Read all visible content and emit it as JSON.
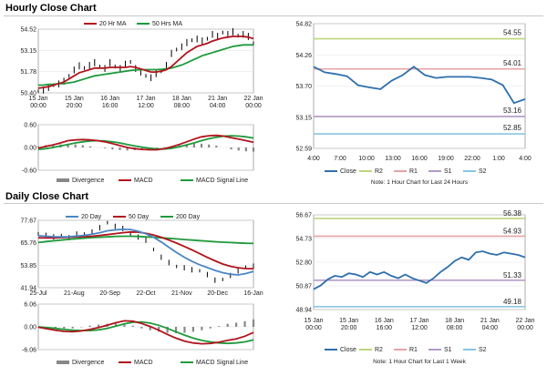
{
  "titles": {
    "hourly": "Hourly Close Chart",
    "daily": "Daily Close Chart"
  },
  "colors": {
    "price": "#000000",
    "ma_short": "#b0141c",
    "ma_long": "#1f9a3c",
    "ma_mid": "#4a86c5",
    "macd": "#b0141c",
    "signal": "#1f9a3c",
    "divergence": "#888888",
    "close": "#2f6fad",
    "r2": "#bcd67a",
    "r1": "#e8a2a2",
    "s1": "#b39ac8",
    "s2": "#88c6e0"
  },
  "chart_data": [
    {
      "id": "hourly_price",
      "type": "line",
      "legend": [
        "20 Hr MA",
        "50 Hrs MA"
      ],
      "x_ticks": [
        "15 Jan\n00:00",
        "15 Jan\n20:00",
        "16 Jan\n16:00",
        "17 Jan\n12:00",
        "18 Jan\n08:00",
        "21 Jan\n04:00",
        "22 Jan\n00:00"
      ],
      "y_ticks": [
        "54.52",
        "53.15",
        "51.78",
        "50.40"
      ],
      "ylim": [
        50.4,
        54.52
      ],
      "series": [
        {
          "name": "Price",
          "values": [
            50.5,
            50.6,
            50.7,
            50.9,
            51.0,
            51.1,
            51.5,
            51.9,
            52.1,
            52.0,
            52.2,
            52.3,
            52.1,
            52.0,
            52.3,
            52.1,
            52.0,
            52.2,
            52.4,
            52.0,
            51.7,
            51.5,
            51.4,
            51.6,
            51.8,
            52.2,
            52.9,
            53.2,
            53.4,
            53.6,
            53.8,
            53.9,
            53.7,
            53.9,
            54.2,
            54.0,
            54.3,
            54.2,
            54.3,
            54.1,
            54.2,
            54.0,
            53.6
          ]
        },
        {
          "name": "20 Hr MA",
          "values": [
            50.7,
            50.75,
            50.8,
            50.9,
            51.0,
            51.1,
            51.3,
            51.5,
            51.7,
            51.8,
            51.9,
            52.0,
            52.0,
            52.0,
            52.05,
            52.05,
            52.05,
            52.05,
            52.1,
            52.05,
            51.95,
            51.85,
            51.75,
            51.75,
            51.8,
            51.9,
            52.1,
            52.4,
            52.7,
            53.0,
            53.2,
            53.4,
            53.5,
            53.6,
            53.75,
            53.85,
            53.95,
            54.0,
            54.05,
            54.05,
            54.05,
            54.0,
            53.9
          ]
        },
        {
          "name": "50 Hrs MA",
          "values": [
            50.9,
            50.9,
            50.95,
            50.95,
            51.0,
            51.0,
            51.05,
            51.1,
            51.2,
            51.3,
            51.4,
            51.5,
            51.55,
            51.6,
            51.65,
            51.7,
            51.75,
            51.8,
            51.85,
            51.88,
            51.9,
            51.9,
            51.9,
            51.9,
            51.92,
            51.95,
            52.0,
            52.1,
            52.2,
            52.35,
            52.5,
            52.65,
            52.8,
            52.9,
            53.0,
            53.1,
            53.2,
            53.3,
            53.4,
            53.45,
            53.5,
            53.5,
            53.5
          ]
        }
      ]
    },
    {
      "id": "hourly_macd",
      "type": "line",
      "legend": [
        "Divergence",
        "MACD",
        "MACD Signal Line"
      ],
      "y_ticks": [
        "0.60",
        "0.00",
        "-0.60"
      ],
      "ylim": [
        -0.6,
        0.6
      ],
      "series": [
        {
          "name": "MACD",
          "values": [
            -0.02,
            0.03,
            0.07,
            0.12,
            0.18,
            0.2,
            0.21,
            0.2,
            0.18,
            0.15,
            0.1,
            0.05,
            0.0,
            -0.03,
            -0.05,
            -0.06,
            -0.06,
            -0.03,
            0.02,
            0.08,
            0.15,
            0.22,
            0.28,
            0.31,
            0.32,
            0.3,
            0.26,
            0.22,
            0.18,
            0.14
          ]
        },
        {
          "name": "MACD Signal Line",
          "values": [
            -0.05,
            -0.03,
            0.0,
            0.04,
            0.08,
            0.12,
            0.15,
            0.17,
            0.18,
            0.17,
            0.15,
            0.12,
            0.08,
            0.04,
            0.01,
            -0.02,
            -0.04,
            -0.04,
            -0.02,
            0.02,
            0.07,
            0.12,
            0.18,
            0.23,
            0.27,
            0.3,
            0.31,
            0.3,
            0.28,
            0.25
          ]
        },
        {
          "name": "Divergence",
          "values": [
            0.03,
            0.06,
            0.07,
            0.08,
            0.1,
            0.08,
            0.06,
            0.03,
            0.0,
            -0.02,
            -0.05,
            -0.07,
            -0.08,
            -0.07,
            -0.06,
            -0.04,
            -0.02,
            0.01,
            0.04,
            0.06,
            0.08,
            0.1,
            0.1,
            0.08,
            0.05,
            0.0,
            -0.05,
            -0.08,
            -0.1,
            -0.11
          ]
        }
      ]
    },
    {
      "id": "hourly_pivot",
      "type": "line",
      "x_ticks": [
        "4:00",
        "7:00",
        "10:00",
        "13:00",
        "16:00",
        "19:00",
        "22:00",
        "1:00",
        "4:00"
      ],
      "y_ticks": [
        "54.82",
        "54.26",
        "53.70",
        "53.15",
        "52.59"
      ],
      "ylim": [
        52.59,
        54.82
      ],
      "levels": [
        {
          "name": "R2",
          "value": 54.55
        },
        {
          "name": "R1",
          "value": 54.01
        },
        {
          "name": "S1",
          "value": 53.16
        },
        {
          "name": "S2",
          "value": 52.85
        }
      ],
      "level_labels": [
        "54.55",
        "54.01",
        "53.16",
        "52.85"
      ],
      "series": [
        {
          "name": "Close",
          "values": [
            54.05,
            53.95,
            53.92,
            53.88,
            53.72,
            53.68,
            53.65,
            53.8,
            53.9,
            54.05,
            53.9,
            53.85,
            53.87,
            53.87,
            53.87,
            53.85,
            53.82,
            53.72,
            53.4,
            53.47
          ]
        }
      ],
      "legend": [
        "Close",
        "R2",
        "R1",
        "S1",
        "S2"
      ],
      "note": "Note: 1 Hour Chart for Last 24 Hours"
    },
    {
      "id": "daily_price",
      "type": "line",
      "legend": [
        "20 Day",
        "50 Day",
        "200 Day"
      ],
      "x_ticks": [
        "25-Jul",
        "21-Aug",
        "20-Sep",
        "22-Oct",
        "21-Nov",
        "20-Dec",
        "16-Jan"
      ],
      "y_ticks": [
        "77.67",
        "65.76",
        "53.85",
        "41.94"
      ],
      "ylim": [
        41.94,
        77.67
      ],
      "series": [
        {
          "name": "Price",
          "values": [
            70.5,
            69.8,
            68.6,
            69.6,
            68.6,
            70.1,
            70.4,
            71.6,
            73.5,
            76.4,
            74.6,
            73.1,
            70.4,
            68.9,
            66.9,
            62.2,
            58.2,
            55.0,
            53.2,
            52.6,
            51.2,
            50.9,
            49.0,
            45.7,
            46.3,
            48.5,
            50.6,
            52.8,
            53.5
          ]
        },
        {
          "name": "20 Day",
          "values": [
            69.5,
            69.2,
            69.0,
            68.9,
            69.0,
            69.3,
            69.7,
            70.3,
            71.1,
            72.1,
            72.6,
            72.9,
            72.8,
            71.9,
            70.5,
            68.7,
            66.2,
            63.4,
            60.6,
            58.1,
            55.9,
            54.1,
            52.6,
            51.1,
            49.9,
            49.1,
            48.7,
            49.4,
            50.6
          ]
        },
        {
          "name": "50 Day",
          "values": [
            68.4,
            68.3,
            68.3,
            68.5,
            68.7,
            68.9,
            69.0,
            69.2,
            69.6,
            70.1,
            70.6,
            71.1,
            71.5,
            71.4,
            70.8,
            69.9,
            68.7,
            67.2,
            65.6,
            63.8,
            62.0,
            60.0,
            58.0,
            56.2,
            54.5,
            53.3,
            52.5,
            52.1,
            52.0
          ]
        },
        {
          "name": "200 Day",
          "values": [
            65.9,
            66.4,
            66.8,
            67.2,
            67.6,
            67.9,
            68.2,
            68.5,
            68.7,
            68.9,
            69.1,
            69.2,
            69.2,
            69.1,
            68.9,
            68.7,
            68.4,
            68.1,
            67.8,
            67.5,
            67.2,
            66.9,
            66.6,
            66.3,
            66.1,
            65.9,
            65.7,
            65.5,
            65.4
          ]
        }
      ]
    },
    {
      "id": "daily_macd",
      "type": "line",
      "legend": [
        "Divergence",
        "MACD",
        "MACD Signal Line"
      ],
      "y_ticks": [
        "6.06",
        "0.00",
        "-6.06"
      ],
      "ylim": [
        -6.06,
        6.06
      ],
      "series": [
        {
          "name": "MACD",
          "values": [
            -0.1,
            -0.5,
            -0.9,
            -1.2,
            -1.3,
            -1.1,
            -0.7,
            -0.2,
            0.4,
            1.1,
            1.6,
            1.5,
            0.9,
            0.1,
            -0.9,
            -2.0,
            -3.0,
            -3.8,
            -4.3,
            -4.5,
            -4.4,
            -4.1,
            -3.6,
            -3.2,
            -2.5,
            -1.5
          ]
        },
        {
          "name": "MACD Signal Line",
          "values": [
            0.0,
            -0.2,
            -0.4,
            -0.7,
            -0.9,
            -1.0,
            -1.0,
            -0.8,
            -0.4,
            0.2,
            0.8,
            1.2,
            1.3,
            1.0,
            0.4,
            -0.4,
            -1.3,
            -2.2,
            -3.0,
            -3.6,
            -4.0,
            -4.3,
            -4.4,
            -4.3,
            -4.0,
            -3.5
          ]
        },
        {
          "name": "Divergence",
          "values": [
            -0.1,
            -0.3,
            -0.5,
            -0.5,
            -0.4,
            -0.1,
            0.3,
            0.6,
            0.8,
            0.9,
            0.8,
            0.3,
            -0.4,
            -0.9,
            -1.3,
            -1.6,
            -1.7,
            -1.6,
            -1.3,
            -0.9,
            -0.4,
            0.2,
            0.8,
            1.1,
            1.5,
            2.0
          ]
        }
      ]
    },
    {
      "id": "daily_pivot",
      "type": "line",
      "x_ticks": [
        "15 Jan\n00:00",
        "15 Jan\n20:00",
        "16 Jan\n16:00",
        "17 Jan\n12:00",
        "18 Jan\n08:00",
        "21 Jan\n04:00",
        "22 Jan\n00:00"
      ],
      "y_ticks": [
        "56.67",
        "54.73",
        "52.80",
        "50.87",
        "48.94"
      ],
      "ylim": [
        48.94,
        56.67
      ],
      "levels": [
        {
          "name": "R2",
          "value": 56.38
        },
        {
          "name": "R1",
          "value": 54.93
        },
        {
          "name": "S1",
          "value": 51.33
        },
        {
          "name": "S2",
          "value": 49.18
        }
      ],
      "level_labels": [
        "56.38",
        "54.93",
        "51.33",
        "49.18"
      ],
      "series": [
        {
          "name": "Close",
          "values": [
            50.6,
            50.9,
            51.4,
            51.7,
            51.6,
            51.9,
            51.8,
            51.6,
            52.0,
            51.8,
            52.0,
            51.7,
            51.5,
            51.8,
            51.5,
            51.3,
            51.1,
            51.5,
            52.0,
            52.4,
            52.9,
            53.2,
            53.0,
            53.6,
            53.7,
            53.5,
            53.4,
            53.6,
            53.5,
            53.4,
            53.2
          ]
        }
      ],
      "legend": [
        "Close",
        "R2",
        "R1",
        "S1",
        "S2"
      ],
      "note": "Note: 1 Hour Chart for Last 1 Week"
    }
  ]
}
